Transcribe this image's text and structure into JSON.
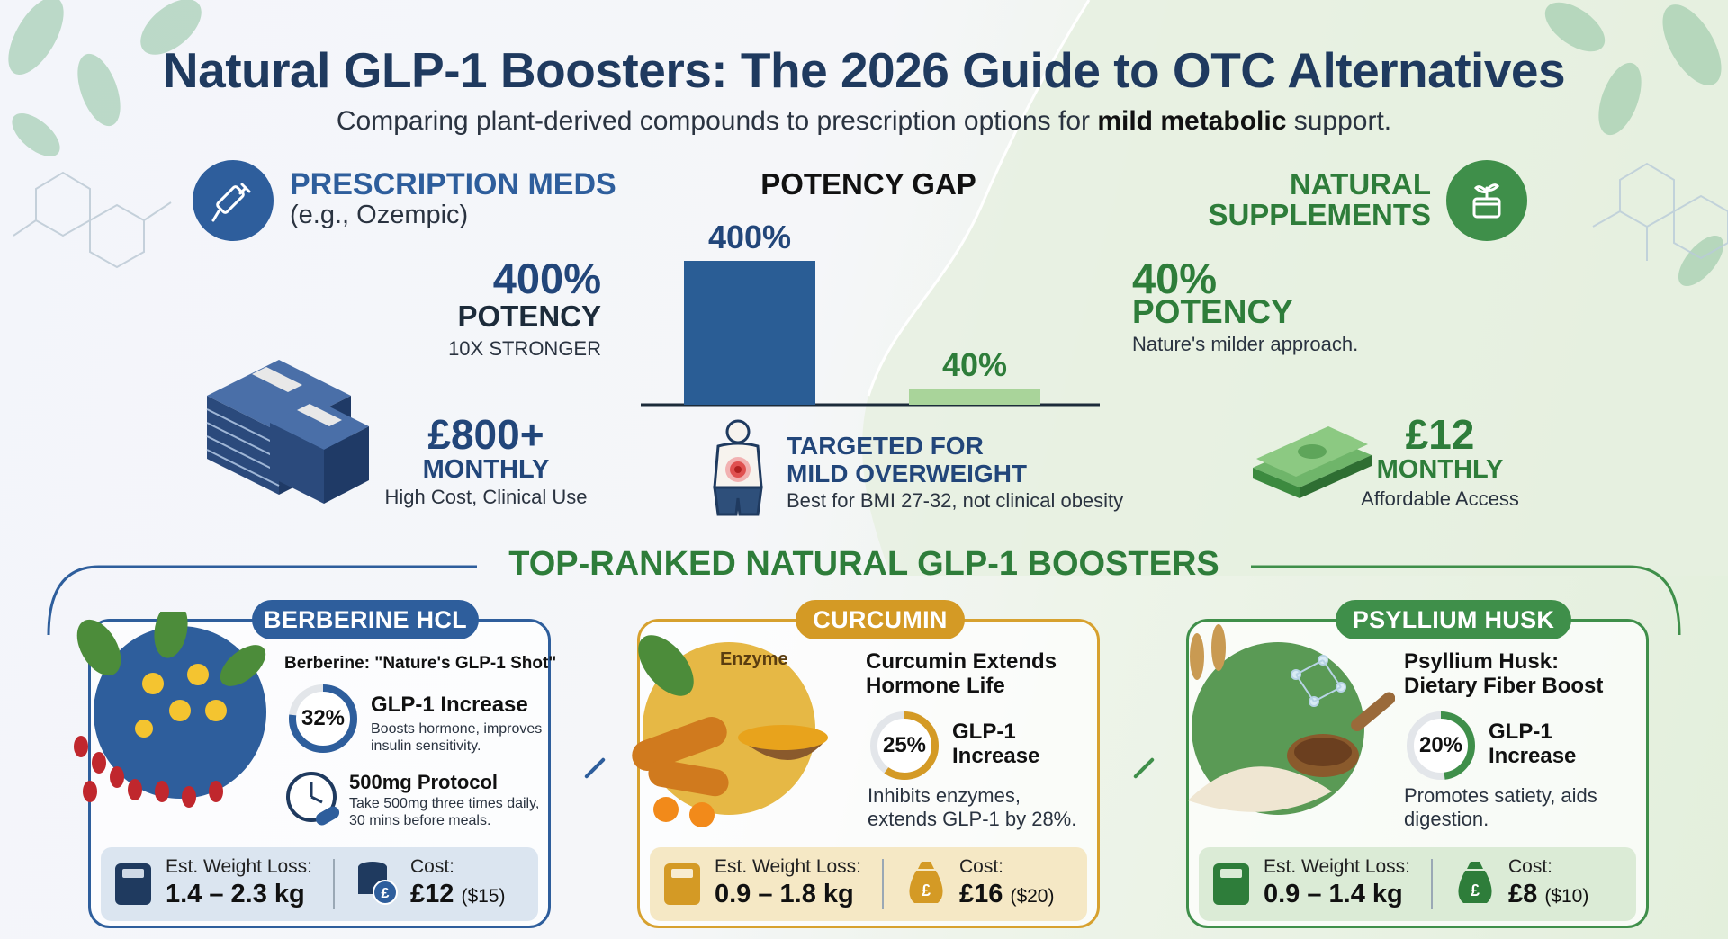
{
  "header": {
    "title": "Natural GLP-1 Boosters: The 2026 Guide to OTC Alternatives",
    "subtitle_pre": "Comparing plant-derived compounds to prescription options for ",
    "subtitle_bold": "mild metabolic",
    "subtitle_post": " support."
  },
  "prescription": {
    "title": "PRESCRIPTION MEDS",
    "subtitle": "(e.g., Ozempic)",
    "potency_value": "400%",
    "potency_label": "POTENCY",
    "potency_note": "10X STRONGER",
    "cost_value": "£800+",
    "cost_label": "MONTHLY",
    "cost_note": "High Cost, Clinical Use"
  },
  "natural": {
    "title_line1": "NATURAL",
    "title_line2": "SUPPLEMENTS",
    "potency_value": "40%",
    "potency_label": "POTENCY",
    "potency_note": "Nature's milder approach.",
    "cost_value": "£12",
    "cost_label": "MONTHLY",
    "cost_note": "Affordable Access"
  },
  "potency_gap": {
    "title": "POTENCY GAP",
    "target_line1": "TARGETED FOR",
    "target_line2": "MILD OVERWEIGHT",
    "target_note": "Best for BMI 27-32, not clinical obesity"
  },
  "chart_data": {
    "type": "bar",
    "title": "POTENCY GAP",
    "categories": [
      "Prescription",
      "Natural"
    ],
    "values": [
      400,
      40
    ],
    "value_labels": [
      "400%",
      "40%"
    ],
    "colors": [
      "#2a5d95",
      "#a9d49a"
    ],
    "ylim": [
      0,
      400
    ],
    "grid": false
  },
  "section": {
    "title": "TOP-RANKED NATURAL GLP-1 BOOSTERS"
  },
  "cards": [
    {
      "name": "BERBERINE HCL",
      "headline": "Berberine: \"Nature's GLP-1 Shot\"",
      "percent": "32%",
      "percent_value": 32,
      "increase_label": "GLP-1 Increase",
      "increase_note": "Boosts hormone, improves insulin sensitivity.",
      "protocol_title": "500mg Protocol",
      "protocol_note": "Take 500mg three times daily, 30 mins before meals.",
      "weight_label": "Est. Weight Loss:",
      "weight_value": "1.4 – 2.3 kg",
      "cost_label": "Cost:",
      "cost_gbp": "£12",
      "cost_usd": "($15)",
      "accent": "#2e5e9c"
    },
    {
      "name": "CURCUMIN",
      "image_label": "Enzyme",
      "headline": "Curcumin Extends Hormone Life",
      "percent": "25%",
      "percent_value": 25,
      "increase_label_1": "GLP-1",
      "increase_label_2": "Increase",
      "description": "Inhibits enzymes, extends GLP-1 by 28%.",
      "weight_label": "Est. Weight Loss:",
      "weight_value": "0.9 – 1.8 kg",
      "cost_label": "Cost:",
      "cost_gbp": "£16",
      "cost_usd": "($20)",
      "accent": "#d49a25"
    },
    {
      "name": "PSYLLIUM HUSK",
      "headline_1": "Psyllium Husk:",
      "headline_2": "Dietary Fiber Boost",
      "percent": "20%",
      "percent_value": 20,
      "increase_label_1": "GLP-1",
      "increase_label_2": "Increase",
      "description": "Promotes satiety, aids digestion.",
      "weight_label": "Est. Weight Loss:",
      "weight_value": "0.9 – 1.4 kg",
      "cost_label": "Cost:",
      "cost_gbp": "£8",
      "cost_usd": "($10)",
      "accent": "#3f8f4a"
    }
  ]
}
